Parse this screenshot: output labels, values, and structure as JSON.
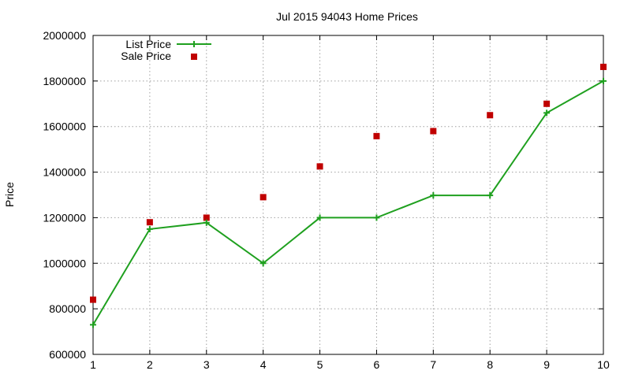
{
  "chart_data": {
    "type": "line",
    "title": "Jul 2015 94043 Home Prices",
    "xlabel": "",
    "ylabel": "Price",
    "x": [
      1,
      2,
      3,
      4,
      5,
      6,
      7,
      8,
      9,
      10
    ],
    "xlim": [
      1,
      10
    ],
    "ylim": [
      600000,
      2000000
    ],
    "yticks": [
      600000,
      800000,
      1000000,
      1200000,
      1400000,
      1600000,
      1800000,
      2000000
    ],
    "grid": true,
    "legend_position": "top-left",
    "series": [
      {
        "name": "List Price",
        "style": "line-with-plus-markers",
        "color": "#1fa01f",
        "values": [
          730000,
          1150000,
          1178000,
          1000000,
          1200000,
          1200000,
          1298000,
          1298000,
          1660000,
          1800000
        ]
      },
      {
        "name": "Sale Price",
        "style": "square-points",
        "color": "#c00000",
        "values": [
          840000,
          1180000,
          1200000,
          1290000,
          1425000,
          1558000,
          1580000,
          1650000,
          1700000,
          1862000
        ]
      }
    ]
  }
}
